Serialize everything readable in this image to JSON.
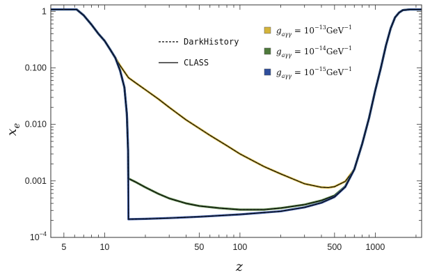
{
  "chart_data": {
    "type": "line",
    "xlabel": "z",
    "ylabel": "x",
    "ylabel_sub": "e",
    "xscale": "log",
    "yscale": "log",
    "xlim": [
      4,
      2200
    ],
    "ylim": [
      0.0001,
      1.3
    ],
    "x_ticks": [
      {
        "value": 5,
        "label": "5"
      },
      {
        "value": 10,
        "label": "10"
      },
      {
        "value": 50,
        "label": "50"
      },
      {
        "value": 100,
        "label": "100"
      },
      {
        "value": 500,
        "label": "500"
      },
      {
        "value": 1000,
        "label": "1000"
      }
    ],
    "y_ticks": [
      {
        "value": 1,
        "label": "1"
      },
      {
        "value": 0.1,
        "label": "0.100"
      },
      {
        "value": 0.01,
        "label": "0.010"
      },
      {
        "value": 0.001,
        "label": "0.001"
      },
      {
        "value": 0.0001,
        "label": "10",
        "exp": "−4"
      }
    ],
    "line_style_legend": [
      {
        "label": "DarkHistory",
        "style": "dashed"
      },
      {
        "label": "CLASS",
        "style": "solid"
      }
    ],
    "series": [
      {
        "label_base": "g",
        "label_sub": "aγγ",
        "label_eq": " = 10",
        "label_exp": "−13",
        "label_unit": "GeV",
        "label_unit_exp": "−1",
        "color": "#d4b43a",
        "points": [
          [
            4.0,
            1.08
          ],
          [
            5.0,
            1.08
          ],
          [
            6.2,
            1.08
          ],
          [
            7.0,
            0.85
          ],
          [
            8.0,
            0.58
          ],
          [
            9.0,
            0.4
          ],
          [
            10.0,
            0.3
          ],
          [
            11.0,
            0.21
          ],
          [
            12.0,
            0.15
          ],
          [
            13.0,
            0.11
          ],
          [
            14.0,
            0.085
          ],
          [
            15.0,
            0.067
          ],
          [
            17.0,
            0.054
          ],
          [
            20.0,
            0.041
          ],
          [
            25.0,
            0.028
          ],
          [
            30.0,
            0.02
          ],
          [
            40.0,
            0.012
          ],
          [
            50.0,
            0.0085
          ],
          [
            60.0,
            0.0064
          ],
          [
            80.0,
            0.0042
          ],
          [
            100.0,
            0.003
          ],
          [
            150.0,
            0.0018
          ],
          [
            200.0,
            0.00133
          ],
          [
            300.0,
            0.00089
          ],
          [
            400.0,
            0.00077
          ],
          [
            450.0,
            0.00076
          ],
          [
            500.0,
            0.00079
          ],
          [
            600.0,
            0.00098
          ],
          [
            700.0,
            0.0016
          ],
          [
            800.0,
            0.0045
          ],
          [
            900.0,
            0.013
          ],
          [
            1000.0,
            0.04
          ],
          [
            1100.0,
            0.1
          ],
          [
            1200.0,
            0.25
          ],
          [
            1300.0,
            0.5
          ],
          [
            1400.0,
            0.78
          ],
          [
            1500.0,
            0.95
          ],
          [
            1600.0,
            1.05
          ],
          [
            1800.0,
            1.08
          ],
          [
            2200.0,
            1.08
          ]
        ]
      },
      {
        "label_base": "g",
        "label_sub": "aγγ",
        "label_eq": " = 10",
        "label_exp": "−14",
        "label_unit": "GeV",
        "label_unit_exp": "−1",
        "color": "#4e7a3c",
        "points": [
          [
            4.0,
            1.08
          ],
          [
            5.0,
            1.08
          ],
          [
            6.2,
            1.08
          ],
          [
            7.0,
            0.85
          ],
          [
            8.0,
            0.58
          ],
          [
            9.0,
            0.4
          ],
          [
            10.0,
            0.3
          ],
          [
            11.0,
            0.21
          ],
          [
            12.0,
            0.15
          ],
          [
            13.0,
            0.09
          ],
          [
            14.0,
            0.045
          ],
          [
            14.6,
            0.015
          ],
          [
            14.9,
            0.0035
          ],
          [
            15.0,
            0.0011
          ],
          [
            17.0,
            0.00095
          ],
          [
            20.0,
            0.00077
          ],
          [
            25.0,
            0.00059
          ],
          [
            30.0,
            0.00049
          ],
          [
            40.0,
            0.0004
          ],
          [
            50.0,
            0.00036
          ],
          [
            70.0,
            0.00033
          ],
          [
            100.0,
            0.00031
          ],
          [
            150.0,
            0.00031
          ],
          [
            200.0,
            0.00033
          ],
          [
            300.0,
            0.00038
          ],
          [
            400.0,
            0.00045
          ],
          [
            500.0,
            0.00055
          ],
          [
            600.0,
            0.0008
          ],
          [
            700.0,
            0.0016
          ],
          [
            800.0,
            0.0045
          ],
          [
            900.0,
            0.013
          ],
          [
            1000.0,
            0.04
          ],
          [
            1100.0,
            0.1
          ],
          [
            1200.0,
            0.25
          ],
          [
            1300.0,
            0.5
          ],
          [
            1400.0,
            0.78
          ],
          [
            1500.0,
            0.95
          ],
          [
            1600.0,
            1.05
          ],
          [
            1800.0,
            1.08
          ],
          [
            2200.0,
            1.08
          ]
        ]
      },
      {
        "label_base": "g",
        "label_sub": "aγγ",
        "label_eq": " = 10",
        "label_exp": "−15",
        "label_unit": "GeV",
        "label_unit_exp": "−1",
        "color": "#2f4e9c",
        "points": [
          [
            4.0,
            1.08
          ],
          [
            5.0,
            1.08
          ],
          [
            6.2,
            1.08
          ],
          [
            7.0,
            0.85
          ],
          [
            8.0,
            0.58
          ],
          [
            9.0,
            0.4
          ],
          [
            10.0,
            0.3
          ],
          [
            11.0,
            0.21
          ],
          [
            12.0,
            0.15
          ],
          [
            13.0,
            0.09
          ],
          [
            14.0,
            0.045
          ],
          [
            14.6,
            0.015
          ],
          [
            14.9,
            0.0035
          ],
          [
            15.0,
            0.00021
          ],
          [
            20.0,
            0.000213
          ],
          [
            30.0,
            0.00022
          ],
          [
            50.0,
            0.000232
          ],
          [
            100.0,
            0.000255
          ],
          [
            200.0,
            0.00029
          ],
          [
            300.0,
            0.00034
          ],
          [
            400.0,
            0.00041
          ],
          [
            500.0,
            0.00052
          ],
          [
            600.0,
            0.00078
          ],
          [
            700.0,
            0.0016
          ],
          [
            800.0,
            0.0045
          ],
          [
            900.0,
            0.013
          ],
          [
            1000.0,
            0.04
          ],
          [
            1100.0,
            0.1
          ],
          [
            1200.0,
            0.25
          ],
          [
            1300.0,
            0.5
          ],
          [
            1400.0,
            0.78
          ],
          [
            1500.0,
            0.95
          ],
          [
            1600.0,
            1.05
          ],
          [
            1800.0,
            1.08
          ],
          [
            2200.0,
            1.08
          ]
        ]
      }
    ]
  }
}
